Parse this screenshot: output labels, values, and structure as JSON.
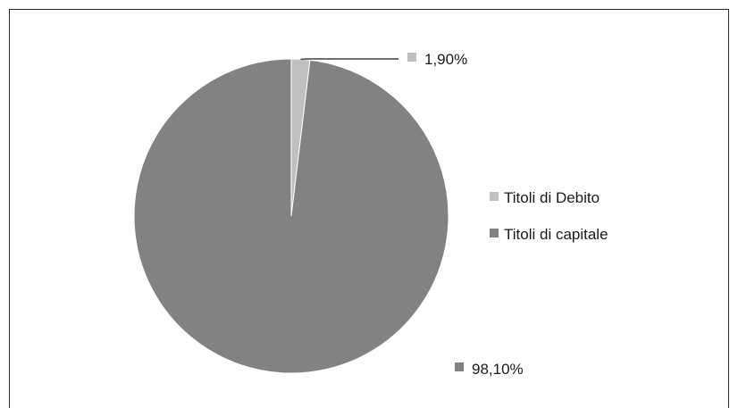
{
  "chart_data": {
    "type": "pie",
    "title": "",
    "categories": [
      "Titoli di Debito",
      "Titoli di capitale"
    ],
    "values": [
      1.9,
      98.1
    ],
    "data_labels": [
      "1,90%",
      "98,10%"
    ],
    "colors": [
      "#c0c0c0",
      "#828282"
    ],
    "legend_position": "right",
    "slice_border_color": "#ffffff"
  }
}
